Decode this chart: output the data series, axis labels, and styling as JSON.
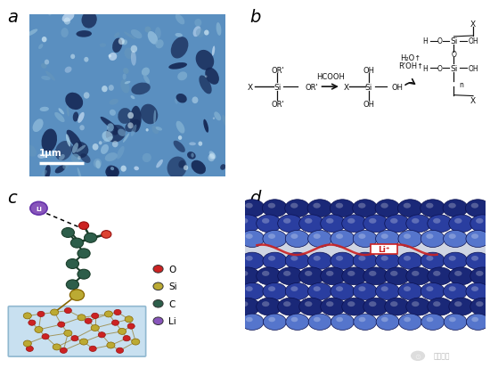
{
  "panel_labels": [
    "a",
    "b",
    "c",
    "d"
  ],
  "panel_label_fontsize": 14,
  "background_color": "#ffffff",
  "panel_a": {
    "bg_base": "#5a8fc0",
    "pore_color": "#1a3a70",
    "particle_light": "#a0c8e8",
    "particle_mid": "#6090b8",
    "scale_bar_text": "1μm"
  },
  "panel_b": {
    "text_color": "#111111",
    "arrow_color": "#111111"
  },
  "panel_c": {
    "li_color": "#8855bb",
    "o_color": "#cc2222",
    "si_color": "#bbaa33",
    "c_color": "#2d5e4a",
    "surface_color": "#c8e0f0",
    "legend_items": [
      "O",
      "Si",
      "C",
      "Li"
    ],
    "legend_colors": [
      "#cc2222",
      "#bbaa33",
      "#2d5e4a",
      "#8855bb"
    ]
  },
  "panel_d": {
    "sphere_dark": "#1a2878",
    "sphere_mid": "#2a3ea0",
    "sphere_light": "#5575cc",
    "sphere_highlight": "#7090e0",
    "bg_color": "#b0c4e8",
    "gap_color": "#8898cc",
    "li_box_color": "#cc2222",
    "wave_color": "#cc2222",
    "watermark": "能源学人"
  }
}
